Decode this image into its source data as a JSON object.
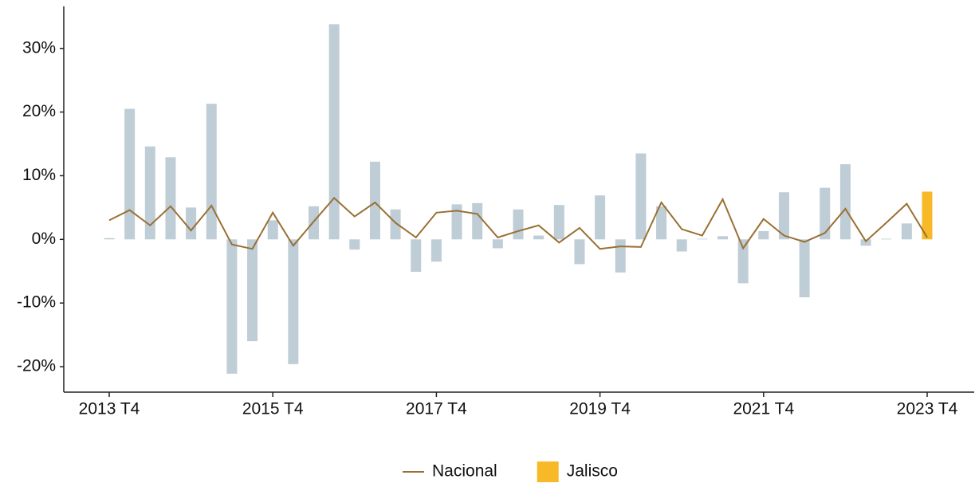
{
  "chart_data": {
    "type": "bar-line",
    "categories": [
      "2013 T4",
      null,
      null,
      null,
      null,
      null,
      null,
      null,
      "2015 T4",
      null,
      null,
      null,
      null,
      null,
      null,
      null,
      "2017 T4",
      null,
      null,
      null,
      null,
      null,
      null,
      null,
      "2019 T4",
      null,
      null,
      null,
      null,
      null,
      null,
      null,
      "2021 T4",
      null,
      null,
      null,
      null,
      null,
      null,
      null,
      "2023 T4"
    ],
    "series": [
      {
        "name": "Jalisco",
        "type": "bar",
        "color": "#f7b928",
        "colors": [
          "#bfcdd6",
          "#bfcdd6",
          "#bfcdd6",
          "#bfcdd6",
          "#bfcdd6",
          "#bfcdd6",
          "#bfcdd6",
          "#bfcdd6",
          "#bfcdd6",
          "#bfcdd6",
          "#bfcdd6",
          "#bfcdd6",
          "#bfcdd6",
          "#bfcdd6",
          "#bfcdd6",
          "#bfcdd6",
          "#bfcdd6",
          "#bfcdd6",
          "#bfcdd6",
          "#bfcdd6",
          "#bfcdd6",
          "#bfcdd6",
          "#bfcdd6",
          "#bfcdd6",
          "#bfcdd6",
          "#bfcdd6",
          "#bfcdd6",
          "#bfcdd6",
          "#bfcdd6",
          "#bfcdd6",
          "#bfcdd6",
          "#bfcdd6",
          "#bfcdd6",
          "#bfcdd6",
          "#bfcdd6",
          "#bfcdd6",
          "#bfcdd6",
          "#bfcdd6",
          "#bfcdd6",
          "#bfcdd6",
          "#f7b928"
        ],
        "values": [
          0.2,
          20.5,
          14.6,
          12.9,
          5.0,
          21.3,
          -21.1,
          -16.0,
          3.0,
          -19.6,
          5.2,
          33.8,
          -1.6,
          12.2,
          4.7,
          -5.1,
          -3.5,
          5.5,
          5.7,
          -1.4,
          4.7,
          0.6,
          5.4,
          -3.9,
          6.9,
          -5.2,
          13.5,
          5.2,
          -1.9,
          0.1,
          0.5,
          -6.9,
          1.3,
          7.4,
          -9.1,
          8.1,
          11.8,
          -1.0,
          0.1,
          2.5,
          7.5
        ]
      },
      {
        "name": "Nacional",
        "type": "line",
        "color": "#9a7035",
        "values": [
          3.0,
          4.6,
          2.2,
          5.2,
          1.4,
          5.3,
          -0.8,
          -1.5,
          4.2,
          -1.0,
          2.8,
          6.5,
          3.6,
          5.8,
          2.6,
          0.3,
          4.2,
          4.5,
          4.0,
          0.3,
          1.3,
          2.2,
          -0.5,
          1.8,
          -1.5,
          -1.1,
          -1.2,
          5.8,
          1.6,
          0.6,
          6.3,
          -1.4,
          3.2,
          0.6,
          -0.4,
          1.0,
          4.8,
          -0.3,
          2.6,
          5.6,
          0.3
        ]
      }
    ],
    "ylim": [
      -24,
      36.6
    ],
    "yticks": [
      {
        "value": -20,
        "label": "-20%"
      },
      {
        "value": -10,
        "label": "-10%"
      },
      {
        "value": 0,
        "label": "0%"
      },
      {
        "value": 10,
        "label": "10%"
      },
      {
        "value": 20,
        "label": "20%"
      },
      {
        "value": 30,
        "label": "30%"
      }
    ],
    "grid": false,
    "legend": "bottom"
  }
}
